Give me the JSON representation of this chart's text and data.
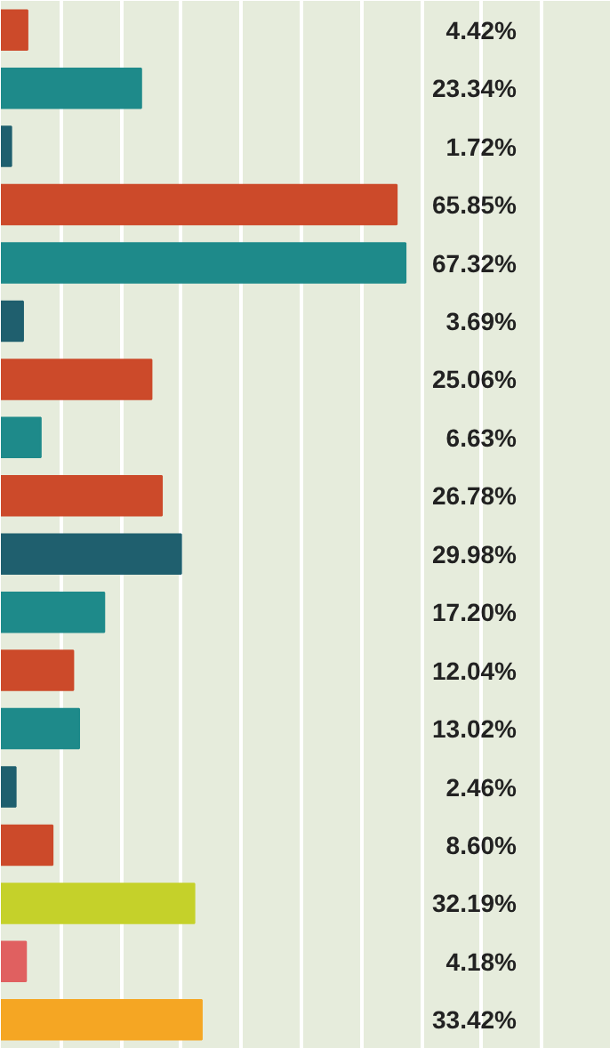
{
  "chart_data": {
    "type": "bar",
    "orientation": "horizontal",
    "categories": [
      null,
      null,
      null,
      null,
      null,
      null,
      null,
      null,
      null,
      null,
      null,
      null,
      null,
      null,
      null,
      null,
      null,
      null
    ],
    "values": [
      4.42,
      23.34,
      1.72,
      65.85,
      67.32,
      3.69,
      25.06,
      6.63,
      26.78,
      29.98,
      17.2,
      12.04,
      13.02,
      2.46,
      8.6,
      32.19,
      4.18,
      33.42
    ],
    "value_labels": [
      "4.42%",
      "23.34%",
      "1.72%",
      "65.85%",
      "67.32%",
      "3.69%",
      "25.06%",
      "6.63%",
      "26.78%",
      "29.98%",
      "17.20%",
      "12.04%",
      "13.02%",
      "2.46%",
      "8.60%",
      "32.19%",
      "4.18%",
      "33.42%"
    ],
    "colors": [
      "#cc4a2a",
      "#1e8a8a",
      "#1f5f6e",
      "#cc4a2a",
      "#1e8a8a",
      "#1f5f6e",
      "#cc4a2a",
      "#1e8a8a",
      "#cc4a2a",
      "#1f5f6e",
      "#1e8a8a",
      "#cc4a2a",
      "#1e8a8a",
      "#1f5f6e",
      "#cc4a2a",
      "#c5d12a",
      "#e06060",
      "#f5a623"
    ],
    "xlim": [
      0,
      100
    ],
    "xticks": [
      {
        "value": 10,
        "label": null
      },
      {
        "value": 20,
        "label": null
      },
      {
        "value": 30,
        "label": null
      },
      {
        "value": 40,
        "label": null
      },
      {
        "value": 50,
        "label": null
      },
      {
        "value": 60,
        "label": null
      },
      {
        "value": 70,
        "label": null
      },
      {
        "value": 80,
        "label": null
      },
      {
        "value": 90,
        "label": null
      }
    ],
    "grid": "x",
    "tick_labels": false
  }
}
